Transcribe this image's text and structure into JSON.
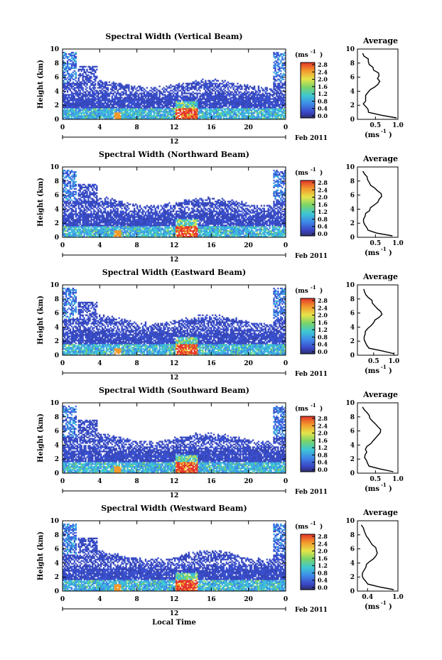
{
  "chart_data": {
    "type": "heatmap",
    "xlabel": "Local Time",
    "date_label": "Feb 2011",
    "day_marker": "12",
    "colorbar_unit": "(ms",
    "colorbar_unit_exp": "-1",
    "colorbar_ticks": [
      "0.0",
      "0.4",
      "0.8",
      "1.2",
      "1.6",
      "2.0",
      "2.4",
      "2.8"
    ],
    "colorbar_range": [
      0,
      2.8
    ],
    "x_ticks": [
      "0",
      "4",
      "8",
      "12",
      "16",
      "20",
      "0"
    ],
    "x_range_hours": [
      0,
      24
    ],
    "y_ticks": [
      "0",
      "2",
      "4",
      "6",
      "8",
      "10"
    ],
    "ylim": [
      0,
      10
    ],
    "ylabel": "Height (km)",
    "avg_title": "Average",
    "avg_xlabel": "(ms",
    "avg_xlabel_exp": "-1",
    "avg_y_ticks": [
      "0",
      "2",
      "4",
      "6",
      "8",
      "10"
    ],
    "avg_height_km": [
      0.2,
      0.6,
      1.0,
      1.4,
      1.8,
      2.2,
      2.6,
      3.0,
      3.4,
      3.8,
      4.2,
      4.6,
      5.0,
      5.4,
      5.8,
      6.2,
      6.6,
      7.0,
      7.4,
      7.8,
      8.2,
      8.6,
      9.0,
      9.4
    ],
    "panels": [
      {
        "title": "Spectral Width (Vertical Beam)",
        "avg_ticks": [
          "0.5",
          "1.0"
        ],
        "avg_xlim": [
          0.1,
          1.0
        ],
        "avg_values": [
          0.95,
          0.6,
          0.35,
          0.33,
          0.27,
          0.25,
          0.28,
          0.3,
          0.3,
          0.32,
          0.4,
          0.5,
          0.58,
          0.6,
          0.55,
          0.6,
          0.55,
          0.48,
          0.42,
          0.38,
          0.35,
          0.33,
          0.25,
          0.22
        ]
      },
      {
        "title": "Spectral Width (Northward Beam)",
        "avg_ticks": [
          "0.5",
          "1.0"
        ],
        "avg_xlim": [
          0.1,
          1.0
        ],
        "avg_values": [
          0.9,
          0.55,
          0.35,
          0.3,
          0.28,
          0.25,
          0.25,
          0.28,
          0.3,
          0.35,
          0.4,
          0.48,
          0.55,
          0.6,
          0.65,
          0.62,
          0.55,
          0.48,
          0.4,
          0.38,
          0.33,
          0.3,
          0.25,
          0.22
        ]
      },
      {
        "title": "Spectral Width (Eastward Beam)",
        "avg_ticks": [
          "0.5",
          "1.0"
        ],
        "avg_xlim": [
          0.1,
          1.1
        ],
        "avg_values": [
          1.0,
          0.7,
          0.4,
          0.35,
          0.3,
          0.27,
          0.27,
          0.3,
          0.3,
          0.33,
          0.42,
          0.5,
          0.55,
          0.62,
          0.7,
          0.68,
          0.6,
          0.55,
          0.45,
          0.45,
          0.38,
          0.32,
          0.28,
          0.25
        ]
      },
      {
        "title": "Spectral Width (Southward Beam)",
        "avg_ticks": [
          "0.5",
          "1.0"
        ],
        "avg_xlim": [
          0.1,
          1.0
        ],
        "avg_values": [
          0.9,
          0.6,
          0.35,
          0.3,
          0.28,
          0.25,
          0.27,
          0.3,
          0.3,
          0.32,
          0.4,
          0.45,
          0.5,
          0.55,
          0.62,
          0.6,
          0.55,
          0.5,
          0.45,
          0.4,
          0.38,
          0.33,
          0.27,
          0.22
        ]
      },
      {
        "title": "Spectral Width (Westward Beam)",
        "avg_ticks": [
          "0.4",
          "1.0"
        ],
        "avg_xlim": [
          0.2,
          1.0
        ],
        "avg_values": [
          0.9,
          0.62,
          0.42,
          0.38,
          0.33,
          0.3,
          0.32,
          0.35,
          0.35,
          0.38,
          0.45,
          0.52,
          0.55,
          0.58,
          0.56,
          0.55,
          0.5,
          0.45,
          0.42,
          0.38,
          0.35,
          0.33,
          0.3,
          0.28
        ]
      }
    ]
  }
}
